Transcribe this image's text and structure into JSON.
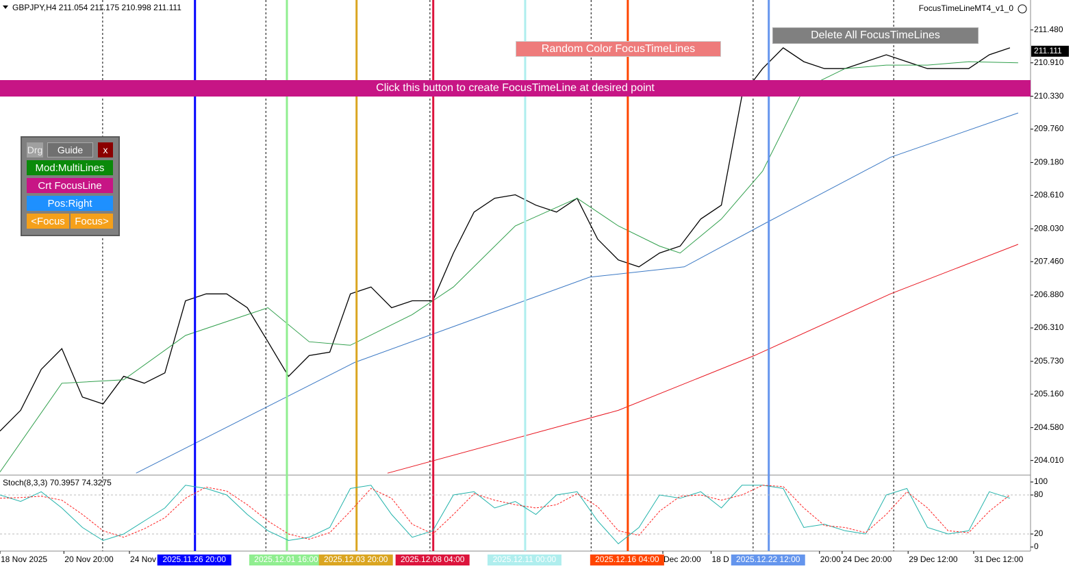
{
  "header": {
    "symbol": "GBPJPY,H4  211.054 211.175 210.998 211.111",
    "indicator": "FocusTimeLineMT4_v1_0"
  },
  "ui": {
    "create_button": "Click this button to create FocusTimeLine at desired point",
    "random_button": "Random Color FocusTimeLines",
    "delete_button": "Delete All FocusTimeLines",
    "panel": {
      "drag": "Drg",
      "guide": "Guide",
      "close": "x",
      "mode": "Mod:MultiLines",
      "create": "Crt FocusLine",
      "position": "Pos:Right",
      "prev": "<Focus",
      "next": "Focus>"
    }
  },
  "chart_data": [
    {
      "type": "line",
      "xlim": [
        0,
        250
      ],
      "ylim": [
        203.78,
        212.0
      ],
      "yticks": [
        {
          "value": 211.48,
          "label": "211.480"
        },
        {
          "value": 210.91,
          "label": "210.910"
        },
        {
          "value": 210.33,
          "label": "210.330"
        },
        {
          "value": 209.76,
          "label": "209.760"
        },
        {
          "value": 209.18,
          "label": "209.180"
        },
        {
          "value": 208.61,
          "label": "208.610"
        },
        {
          "value": 208.03,
          "label": "208.030"
        },
        {
          "value": 207.46,
          "label": "207.460"
        },
        {
          "value": 206.88,
          "label": "206.880"
        },
        {
          "value": 206.31,
          "label": "206.310"
        },
        {
          "value": 205.73,
          "label": "205.730"
        },
        {
          "value": 205.16,
          "label": "205.160"
        },
        {
          "value": 204.58,
          "label": "204.580"
        },
        {
          "value": 204.01,
          "label": "204.010"
        }
      ],
      "xticks": [
        {
          "value": 0,
          "label": "18 Nov 2025"
        },
        {
          "value": 15.5,
          "label": "20 Nov 20:00"
        },
        {
          "value": 31.4,
          "label": "24 Nov"
        },
        {
          "value": 160.8,
          "label": "Dec 20:00"
        },
        {
          "value": 172.5,
          "label": "18 D"
        },
        {
          "value": 198.8,
          "label": "20:00"
        },
        {
          "value": 204.3,
          "label": "24 Dec 20:00"
        },
        {
          "value": 220.3,
          "label": "29 Dec 12:00"
        },
        {
          "value": 236.2,
          "label": "31 Dec 12:00"
        }
      ],
      "vgrid": [
        24.9,
        64.5,
        104.3,
        143.4,
        182.7,
        216.8
      ],
      "last_price": {
        "value": 211.111,
        "label": "211.111"
      },
      "x": [
        0,
        5,
        10,
        15,
        20,
        25,
        30,
        35,
        40,
        45,
        50,
        55,
        60,
        65,
        70,
        75,
        80,
        85,
        90,
        95,
        100,
        105,
        110,
        115,
        120,
        125,
        130,
        135,
        140,
        145,
        150,
        155,
        160,
        165,
        170,
        175,
        180,
        185,
        190,
        195,
        200,
        205,
        210,
        215,
        220,
        225,
        230,
        235,
        240,
        245
      ],
      "values": [
        204.52,
        204.88,
        205.59,
        205.95,
        205.11,
        204.99,
        205.47,
        205.35,
        205.53,
        206.78,
        206.9,
        206.9,
        206.66,
        206.07,
        205.47,
        205.83,
        205.89,
        206.9,
        207.02,
        206.66,
        206.78,
        206.78,
        207.61,
        208.32,
        208.56,
        208.62,
        208.44,
        208.32,
        208.56,
        207.85,
        207.49,
        207.37,
        207.61,
        207.73,
        208.2,
        208.44,
        210.34,
        210.81,
        211.17,
        210.93,
        210.81,
        210.81,
        210.93,
        211.05,
        210.93,
        210.81,
        210.81,
        210.81,
        211.05,
        211.17
      ],
      "color": "#000000",
      "series": [
        {
          "color": "#2e9e4a",
          "x": [
            0,
            15,
            30,
            45,
            60,
            65,
            75,
            85,
            100,
            110,
            125,
            140,
            150,
            160,
            165,
            175,
            185,
            195,
            205,
            215,
            225,
            235,
            247
          ],
          "values": [
            203.81,
            205.35,
            205.41,
            206.18,
            206.54,
            206.66,
            206.07,
            206.01,
            206.54,
            207.02,
            208.08,
            208.56,
            208.08,
            207.73,
            207.61,
            208.2,
            209.03,
            210.46,
            210.81,
            210.87,
            210.87,
            210.93,
            210.91
          ]
        },
        {
          "color": "#3a78c4",
          "x": [
            33,
            86,
            143,
            166,
            186,
            216,
            247
          ],
          "values": [
            203.79,
            205.71,
            207.19,
            207.37,
            208.14,
            209.27,
            210.04
          ]
        },
        {
          "color": "#e8141e",
          "x": [
            94,
            150,
            183,
            216,
            247
          ],
          "values": [
            203.79,
            204.88,
            205.83,
            206.9,
            207.76
          ]
        }
      ],
      "focus_lines": [
        {
          "x": 47.3,
          "color": "#0000ff",
          "label": "2025.11.26 20:00"
        },
        {
          "x": 69.6,
          "color": "#90ee90",
          "label": "2025.12.01 16:00"
        },
        {
          "x": 86.5,
          "color": "#daa520",
          "label": "2025.12.03 20:00"
        },
        {
          "x": 105.1,
          "color": "#dc143c",
          "label": "2025.12.08 04:00"
        },
        {
          "x": 127.4,
          "color": "#afeeee",
          "label": "2025.12.11 00:00"
        },
        {
          "x": 152.3,
          "color": "#ff4500",
          "label": "2025.12.16 04:00"
        },
        {
          "x": 186.5,
          "color": "#6495ed",
          "label": "2025.12.22 12:00"
        }
      ]
    },
    {
      "type": "line",
      "title": "Stoch(8,3,3) 70.3957 74.3275",
      "xlim": [
        0,
        250
      ],
      "ylim": [
        -6.3,
        107.4
      ],
      "yticks": [
        100,
        80,
        20,
        0
      ],
      "levels": [
        80,
        20
      ],
      "x": [
        0,
        5,
        10,
        15,
        20,
        25,
        30,
        35,
        40,
        45,
        50,
        55,
        60,
        65,
        70,
        75,
        80,
        85,
        90,
        95,
        100,
        105,
        110,
        115,
        120,
        125,
        130,
        135,
        140,
        145,
        150,
        155,
        160,
        165,
        170,
        175,
        180,
        185,
        190,
        195,
        200,
        205,
        210,
        215,
        220,
        225,
        230,
        235,
        240,
        245
      ],
      "series": [
        {
          "color": "#20b2aa",
          "values": [
            80,
            70,
            85,
            60,
            30,
            10,
            20,
            40,
            60,
            95,
            90,
            80,
            50,
            25,
            10,
            15,
            30,
            90,
            95,
            50,
            15,
            25,
            80,
            85,
            60,
            70,
            50,
            80,
            85,
            40,
            5,
            30,
            80,
            75,
            85,
            60,
            95,
            95,
            90,
            30,
            35,
            25,
            20,
            80,
            90,
            30,
            20,
            25,
            85,
            75
          ]
        },
        {
          "color": "#ff2020",
          "dashed": true,
          "values": [
            75,
            76,
            78,
            72,
            50,
            25,
            15,
            28,
            45,
            75,
            92,
            86,
            65,
            40,
            20,
            12,
            22,
            55,
            90,
            75,
            35,
            20,
            50,
            82,
            72,
            65,
            60,
            65,
            82,
            62,
            25,
            18,
            55,
            78,
            80,
            72,
            80,
            95,
            93,
            60,
            33,
            30,
            22,
            50,
            85,
            60,
            25,
            22,
            55,
            80
          ]
        }
      ]
    }
  ]
}
